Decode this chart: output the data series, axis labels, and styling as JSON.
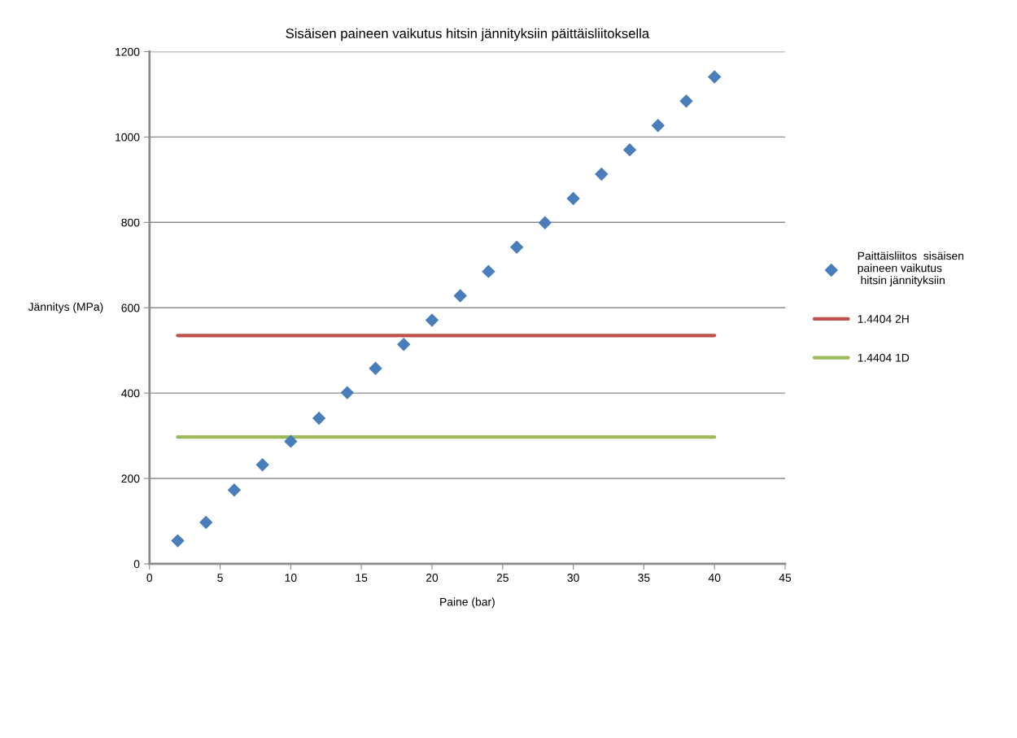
{
  "chart_data": {
    "type": "scatter",
    "title": "Sisäisen paineen vaikutus hitsin jännityksiin päittäisliitoksella",
    "xlabel": "Paine (bar)",
    "ylabel": "Jännitys (MPa)",
    "x": [
      2,
      4,
      6,
      8,
      10,
      12,
      14,
      16,
      18,
      20,
      22,
      24,
      26,
      28,
      30,
      32,
      34,
      36,
      38,
      40
    ],
    "series": [
      {
        "name": "Paittäisliitos  sisäisen\npaineen vaikutus\n hitsin jännityksiin",
        "color": "#4a7ebb",
        "marker": "diamond",
        "values": [
          54,
          97,
          173,
          232,
          287,
          341,
          401,
          458,
          514,
          571,
          628,
          685,
          742,
          799,
          856,
          913,
          970,
          1027,
          1084,
          1141
        ]
      },
      {
        "name": "1.4404 2H",
        "type": "line",
        "color": "#c0504d",
        "values": [
          535,
          535,
          535,
          535,
          535,
          535,
          535,
          535,
          535,
          535,
          535,
          535,
          535,
          535,
          535,
          535,
          535,
          535,
          535,
          535
        ]
      },
      {
        "name": "1.4404 1D",
        "type": "line",
        "color": "#9bbb59",
        "values": [
          297,
          297,
          297,
          297,
          297,
          297,
          297,
          297,
          297,
          297,
          297,
          297,
          297,
          297,
          297,
          297,
          297,
          297,
          297,
          297
        ]
      }
    ],
    "xlim": [
      0,
      45
    ],
    "xticks": [
      0,
      5,
      10,
      15,
      20,
      25,
      30,
      35,
      40,
      45
    ],
    "ylim": [
      0,
      1200
    ],
    "yticks": [
      0,
      200,
      400,
      600,
      800,
      1000,
      1200
    ],
    "grid": "y",
    "legend": "right"
  }
}
